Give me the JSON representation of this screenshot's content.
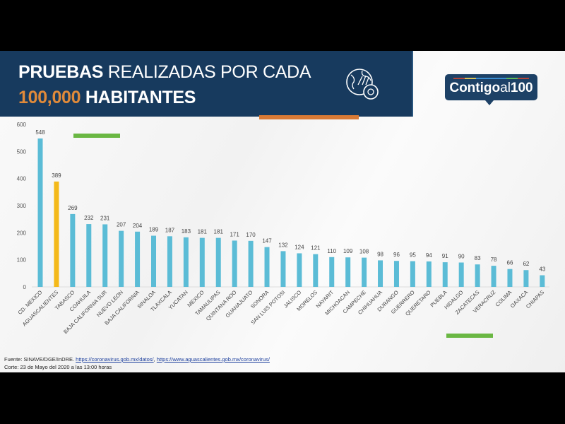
{
  "header": {
    "title_bold": "PRUEBAS",
    "title_rest": " REALIZADAS POR CADA",
    "title2_number": "100,000",
    "title2_rest": " HABITANTES"
  },
  "logo": {
    "text_main": "Contigo",
    "text_al": "al",
    "text_num": "100"
  },
  "colors": {
    "navy": "#173a5e",
    "bar": "#5bbcd6",
    "highlight": "#f4b91a",
    "accent_orange": "#d97a35",
    "accent_green": "#6ab743"
  },
  "icons": [
    "globe-virus-icon"
  ],
  "chart_data": {
    "type": "bar",
    "ylim": [
      0,
      600
    ],
    "yticks": [
      0,
      100,
      200,
      300,
      400,
      500,
      600
    ],
    "grid": false,
    "highlight_category": "AGUASCALIENTES",
    "categories": [
      "CD. MEXICO",
      "AGUASCALIENTES",
      "TABASCO",
      "COAHUILA",
      "BAJA CALIFORNIA SUR",
      "NUEVO LEON",
      "BAJA CALIFORNIA",
      "SINALOA",
      "TLAXCALA",
      "YUCATAN",
      "MEXICO",
      "TAMAULIPAS",
      "QUINTANA ROO",
      "GUANAJUATO",
      "SONORA",
      "SAN LUIS POTOSI",
      "JALISCO",
      "MORELOS",
      "NAYARIT",
      "MICHOACAN",
      "CAMPECHE",
      "CHIHUAHUA",
      "DURANGO",
      "GUERRERO",
      "QUERETARO",
      "PUEBLA",
      "HIDALGO",
      "ZACATECAS",
      "VERACRUZ",
      "COLIMA",
      "OAXACA",
      "CHIAPAS"
    ],
    "values": [
      548,
      389,
      269,
      232,
      231,
      207,
      204,
      189,
      187,
      183,
      181,
      181,
      171,
      170,
      147,
      132,
      124,
      121,
      110,
      109,
      108,
      98,
      96,
      95,
      94,
      91,
      90,
      83,
      78,
      66,
      62,
      43
    ]
  },
  "footer": {
    "source_prefix": "Fuente: SINAVE/DGE/InDRE.",
    "link1": "https://coronavirus.gob.mx/datos/",
    "sep": ", ",
    "link2": "https://www.aguascalientes.gob.mx/coronavirus/",
    "cutoff": "Corte: 23 de Mayo del 2020 a las 13:00 horas"
  }
}
